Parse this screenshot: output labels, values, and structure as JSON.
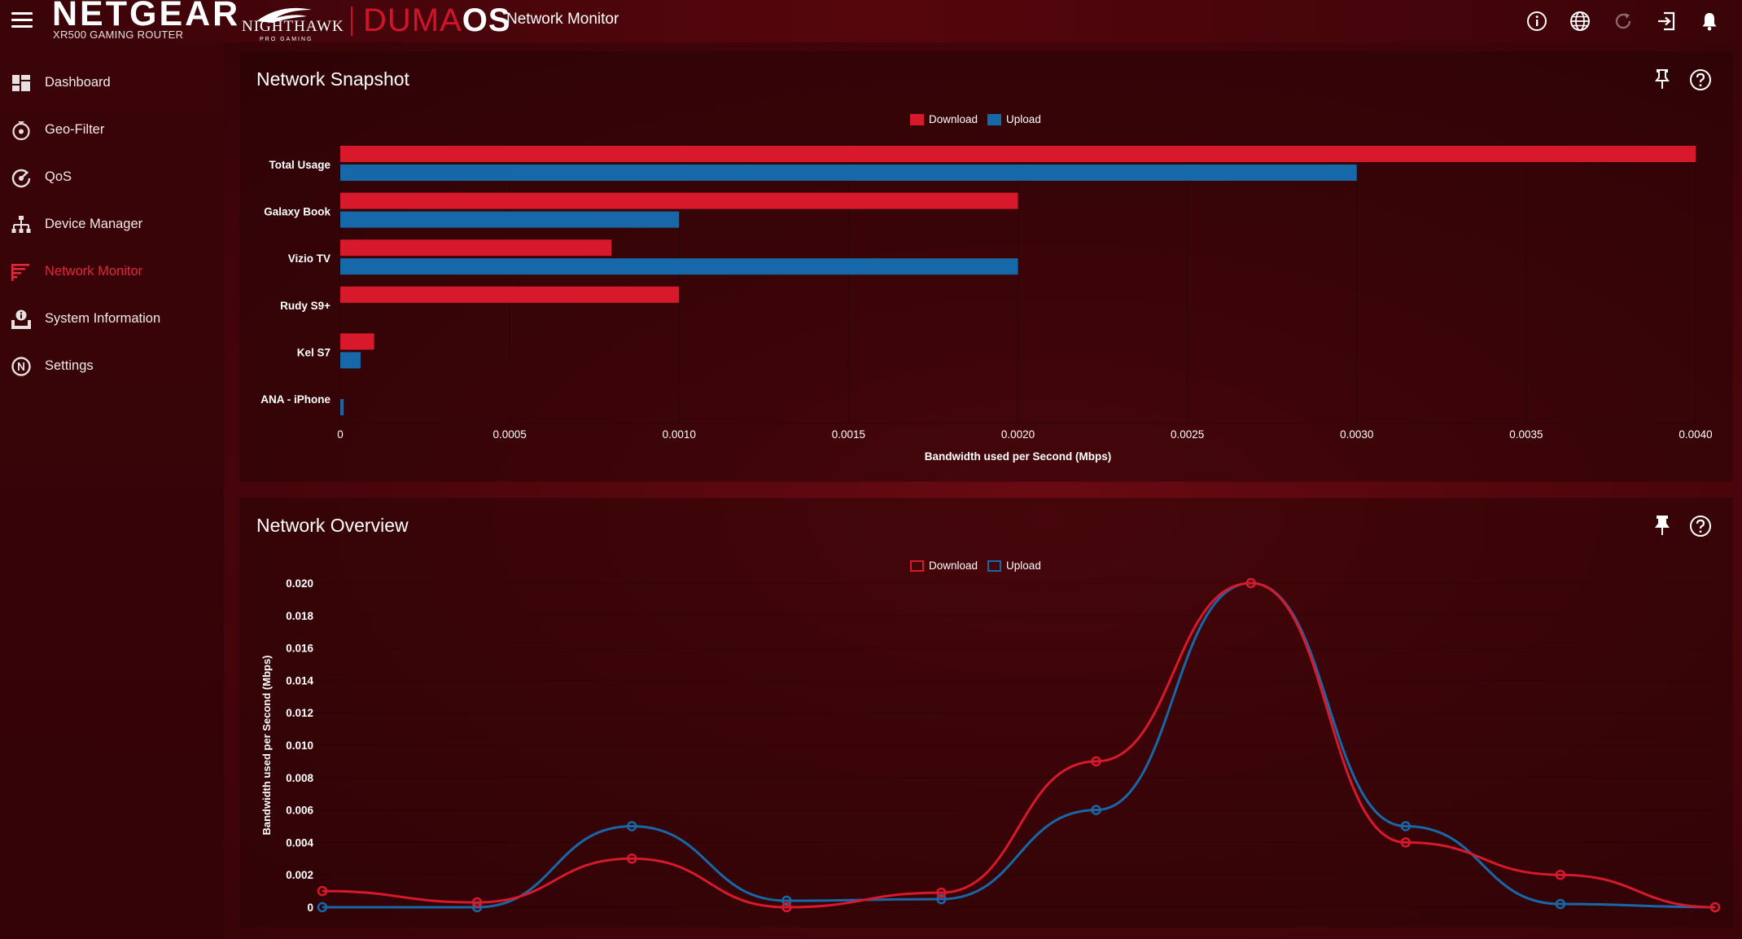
{
  "topbar": {
    "brand": "NETGEAR",
    "brand_sub": "XR500 GAMING ROUTER",
    "nighthawk": "NIGHTHAWK",
    "nighthawk_sub": "PRO GAMING",
    "duma_thin": "DUMA",
    "duma_bold": "OS",
    "app_title": "Network Monitor",
    "icons": [
      "info-icon",
      "globe-icon",
      "refresh-icon",
      "logout-icon",
      "bell-icon"
    ]
  },
  "sidebar": {
    "items": [
      {
        "label": "Dashboard",
        "icon": "dashboard-icon",
        "active": false
      },
      {
        "label": "Geo-Filter",
        "icon": "geo-filter-icon",
        "active": false
      },
      {
        "label": "QoS",
        "icon": "qos-icon",
        "active": false
      },
      {
        "label": "Device Manager",
        "icon": "device-manager-icon",
        "active": false
      },
      {
        "label": "Network Monitor",
        "icon": "network-monitor-icon",
        "active": true
      },
      {
        "label": "System Information",
        "icon": "system-information-icon",
        "active": false
      },
      {
        "label": "Settings",
        "icon": "settings-icon",
        "active": false
      }
    ]
  },
  "colors": {
    "download": "#d7192b",
    "upload": "#1668a8",
    "accent": "#e0283c"
  },
  "snapshot": {
    "title": "Network Snapshot",
    "chart_data": {
      "type": "bar",
      "orientation": "horizontal",
      "title": "Network Snapshot",
      "categories": [
        "Total Usage",
        "Galaxy Book",
        "Vizio TV",
        "Rudy S9+",
        "Kel S7",
        "ANA - iPhone"
      ],
      "series": [
        {
          "name": "Download",
          "values": [
            0.004,
            0.002,
            0.0008,
            0.001,
            0.0001,
            0
          ]
        },
        {
          "name": "Upload",
          "values": [
            0.003,
            0.001,
            0.002,
            0,
            6e-05,
            1e-05
          ]
        }
      ],
      "xlabel": "Bandwidth used per Second (Mbps)",
      "xlim": [
        0,
        0.004
      ],
      "xticks": [
        "0",
        "0.0005",
        "0.0010",
        "0.0015",
        "0.0020",
        "0.0025",
        "0.0030",
        "0.0035",
        "0.0040"
      ],
      "legend": "top-center"
    }
  },
  "overview": {
    "title": "Network Overview",
    "chart_data": {
      "type": "line",
      "title": "Network Overview",
      "series": [
        {
          "name": "Download",
          "values": [
            0.001,
            0.0003,
            0.003,
            0,
            0.0009,
            0.009,
            0.02,
            0.004,
            0.002,
            0
          ]
        },
        {
          "name": "Upload",
          "values": [
            0,
            0,
            0.005,
            0.0004,
            0.0005,
            0.006,
            0.02,
            0.005,
            0.0002,
            0
          ]
        }
      ],
      "ylabel": "Bandwidth used per Second (Mbps)",
      "ylim": [
        0,
        0.02
      ],
      "yticks": [
        "0",
        "0.002",
        "0.004",
        "0.006",
        "0.008",
        "0.010",
        "0.012",
        "0.014",
        "0.016",
        "0.018",
        "0.020"
      ],
      "legend": "top-center"
    }
  }
}
